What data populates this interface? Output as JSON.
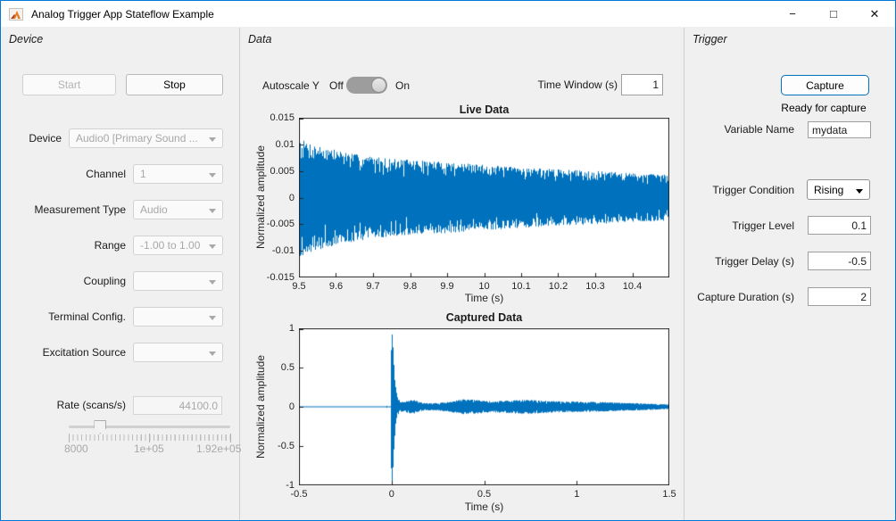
{
  "window": {
    "title": "Analog Trigger App Stateflow Example",
    "controls": {
      "minimize": "−",
      "maximize": "□",
      "close": "✕"
    }
  },
  "colors": {
    "accent_blue": "#0072BD",
    "window_border": "#0078D7",
    "panel_bg": "#f0f0f0",
    "plot_line": "#0072BD"
  },
  "device_panel": {
    "title": "Device",
    "start_button": "Start",
    "stop_button": "Stop",
    "fields": [
      {
        "label": "Device",
        "value": "Audio0 [Primary Sound ...",
        "disabled": true
      },
      {
        "label": "Channel",
        "value": "1",
        "disabled": true
      },
      {
        "label": "Measurement Type",
        "value": "Audio",
        "disabled": true
      },
      {
        "label": "Range",
        "value": "-1.00 to 1.00",
        "disabled": true
      },
      {
        "label": "Coupling",
        "value": "",
        "disabled": true
      },
      {
        "label": "Terminal Config.",
        "value": "",
        "disabled": true
      },
      {
        "label": "Excitation Source",
        "value": "",
        "disabled": true
      }
    ],
    "rate": {
      "label": "Rate (scans/s)",
      "value": "44100.0",
      "disabled": true
    },
    "slider": {
      "min_label": "8000",
      "mid_label": "1e+05",
      "max_label": "1.92e+05",
      "min": 8000,
      "max": 192000,
      "value": 44100,
      "position_pct": 19.6,
      "disabled": true
    }
  },
  "data_panel": {
    "title": "Data",
    "autoscale_label": "Autoscale Y",
    "off_label": "Off",
    "on_label": "On",
    "autoscale_state": "on",
    "time_window_label": "Time Window (s)",
    "time_window_value": "1"
  },
  "trigger_panel": {
    "title": "Trigger",
    "capture_button": "Capture",
    "status": "Ready for capture",
    "variable_name_label": "Variable Name",
    "variable_name_value": "mydata",
    "condition_label": "Trigger Condition",
    "condition_value": "Rising",
    "level_label": "Trigger Level",
    "level_value": "0.1",
    "delay_label": "Trigger Delay (s)",
    "delay_value": "-0.5",
    "duration_label": "Capture Duration (s)",
    "duration_value": "2"
  },
  "chart_data": [
    {
      "id": "live",
      "type": "line",
      "title": "Live Data",
      "xlabel": "Time (s)",
      "ylabel": "Normalized amplitude",
      "xlim": [
        9.5,
        10.5
      ],
      "ylim": [
        -0.015,
        0.015
      ],
      "xticks": [
        9.5,
        9.6,
        9.7,
        9.8,
        9.9,
        10,
        10.1,
        10.2,
        10.3,
        10.4,
        10.5
      ],
      "xtick_labels": [
        "9.5",
        "9.6",
        "9.7",
        "9.8",
        "9.9",
        "10",
        "10.1",
        "10.2",
        "10.3",
        "10.4",
        ""
      ],
      "yticks": [
        -0.015,
        -0.01,
        -0.005,
        0,
        0.005,
        0.01,
        0.015
      ],
      "ytick_labels": [
        "-0.015",
        "-0.01",
        "-0.005",
        "0",
        "0.005",
        "0.01",
        "0.015"
      ],
      "line_color": "#0072BD",
      "grid": false,
      "signal": "dense decaying audio oscillation, symmetric about 0; peak amplitude decays from ~0.011 at t=9.5 s to ~0.004 at t=10.5 s",
      "seed": 7,
      "envelope": [
        [
          9.5,
          0.0112
        ],
        [
          9.52,
          0.0105
        ],
        [
          9.55,
          0.0098
        ],
        [
          9.6,
          0.009
        ],
        [
          9.65,
          0.0082
        ],
        [
          9.7,
          0.0077
        ],
        [
          9.75,
          0.0073
        ],
        [
          9.8,
          0.0071
        ],
        [
          9.85,
          0.0069
        ],
        [
          9.9,
          0.0067
        ],
        [
          9.95,
          0.0064
        ],
        [
          10.0,
          0.0062
        ],
        [
          10.05,
          0.0059
        ],
        [
          10.1,
          0.0057
        ],
        [
          10.15,
          0.0055
        ],
        [
          10.2,
          0.0053
        ],
        [
          10.3,
          0.005
        ],
        [
          10.4,
          0.0046
        ],
        [
          10.5,
          0.0043
        ]
      ]
    },
    {
      "id": "captured",
      "type": "line",
      "title": "Captured Data",
      "xlabel": "Time (s)",
      "ylabel": "Normalized amplitude",
      "xlim": [
        -0.5,
        1.5
      ],
      "ylim": [
        -1,
        1
      ],
      "xticks": [
        -0.5,
        0,
        0.5,
        1,
        1.5
      ],
      "xtick_labels": [
        "-0.5",
        "0",
        "0.5",
        "1",
        "1.5"
      ],
      "yticks": [
        -1,
        -0.5,
        0,
        0.5,
        1
      ],
      "ytick_labels": [
        "-1",
        "-0.5",
        "0",
        "0.5",
        "1"
      ],
      "line_color": "#0072BD",
      "grid": false,
      "signal": "flat ~0 before trigger, sharp full-scale transient spike (+1 to -0.95) at t=0, then low-amplitude oscillation (envelope ~0.05-0.1) slowly decaying to ~0.03 by t=1.5 s",
      "seed": 13,
      "envelope": [
        [
          -0.5,
          0.004
        ],
        [
          -0.03,
          0.004
        ],
        [
          -0.025,
          0.012
        ],
        [
          -0.02,
          0.004
        ],
        [
          -0.006,
          0.004
        ],
        [
          -0.004,
          0.55
        ],
        [
          0.0,
          1.0
        ],
        [
          0.006,
          0.95
        ],
        [
          0.015,
          0.45
        ],
        [
          0.03,
          0.13
        ],
        [
          0.05,
          0.06
        ],
        [
          0.08,
          0.075
        ],
        [
          0.12,
          0.09
        ],
        [
          0.17,
          0.05
        ],
        [
          0.22,
          0.045
        ],
        [
          0.3,
          0.06
        ],
        [
          0.38,
          0.095
        ],
        [
          0.45,
          0.09
        ],
        [
          0.55,
          0.07
        ],
        [
          0.65,
          0.085
        ],
        [
          0.75,
          0.09
        ],
        [
          0.85,
          0.075
        ],
        [
          0.95,
          0.07
        ],
        [
          1.05,
          0.065
        ],
        [
          1.15,
          0.06
        ],
        [
          1.25,
          0.05
        ],
        [
          1.35,
          0.045
        ],
        [
          1.5,
          0.03
        ]
      ]
    }
  ]
}
